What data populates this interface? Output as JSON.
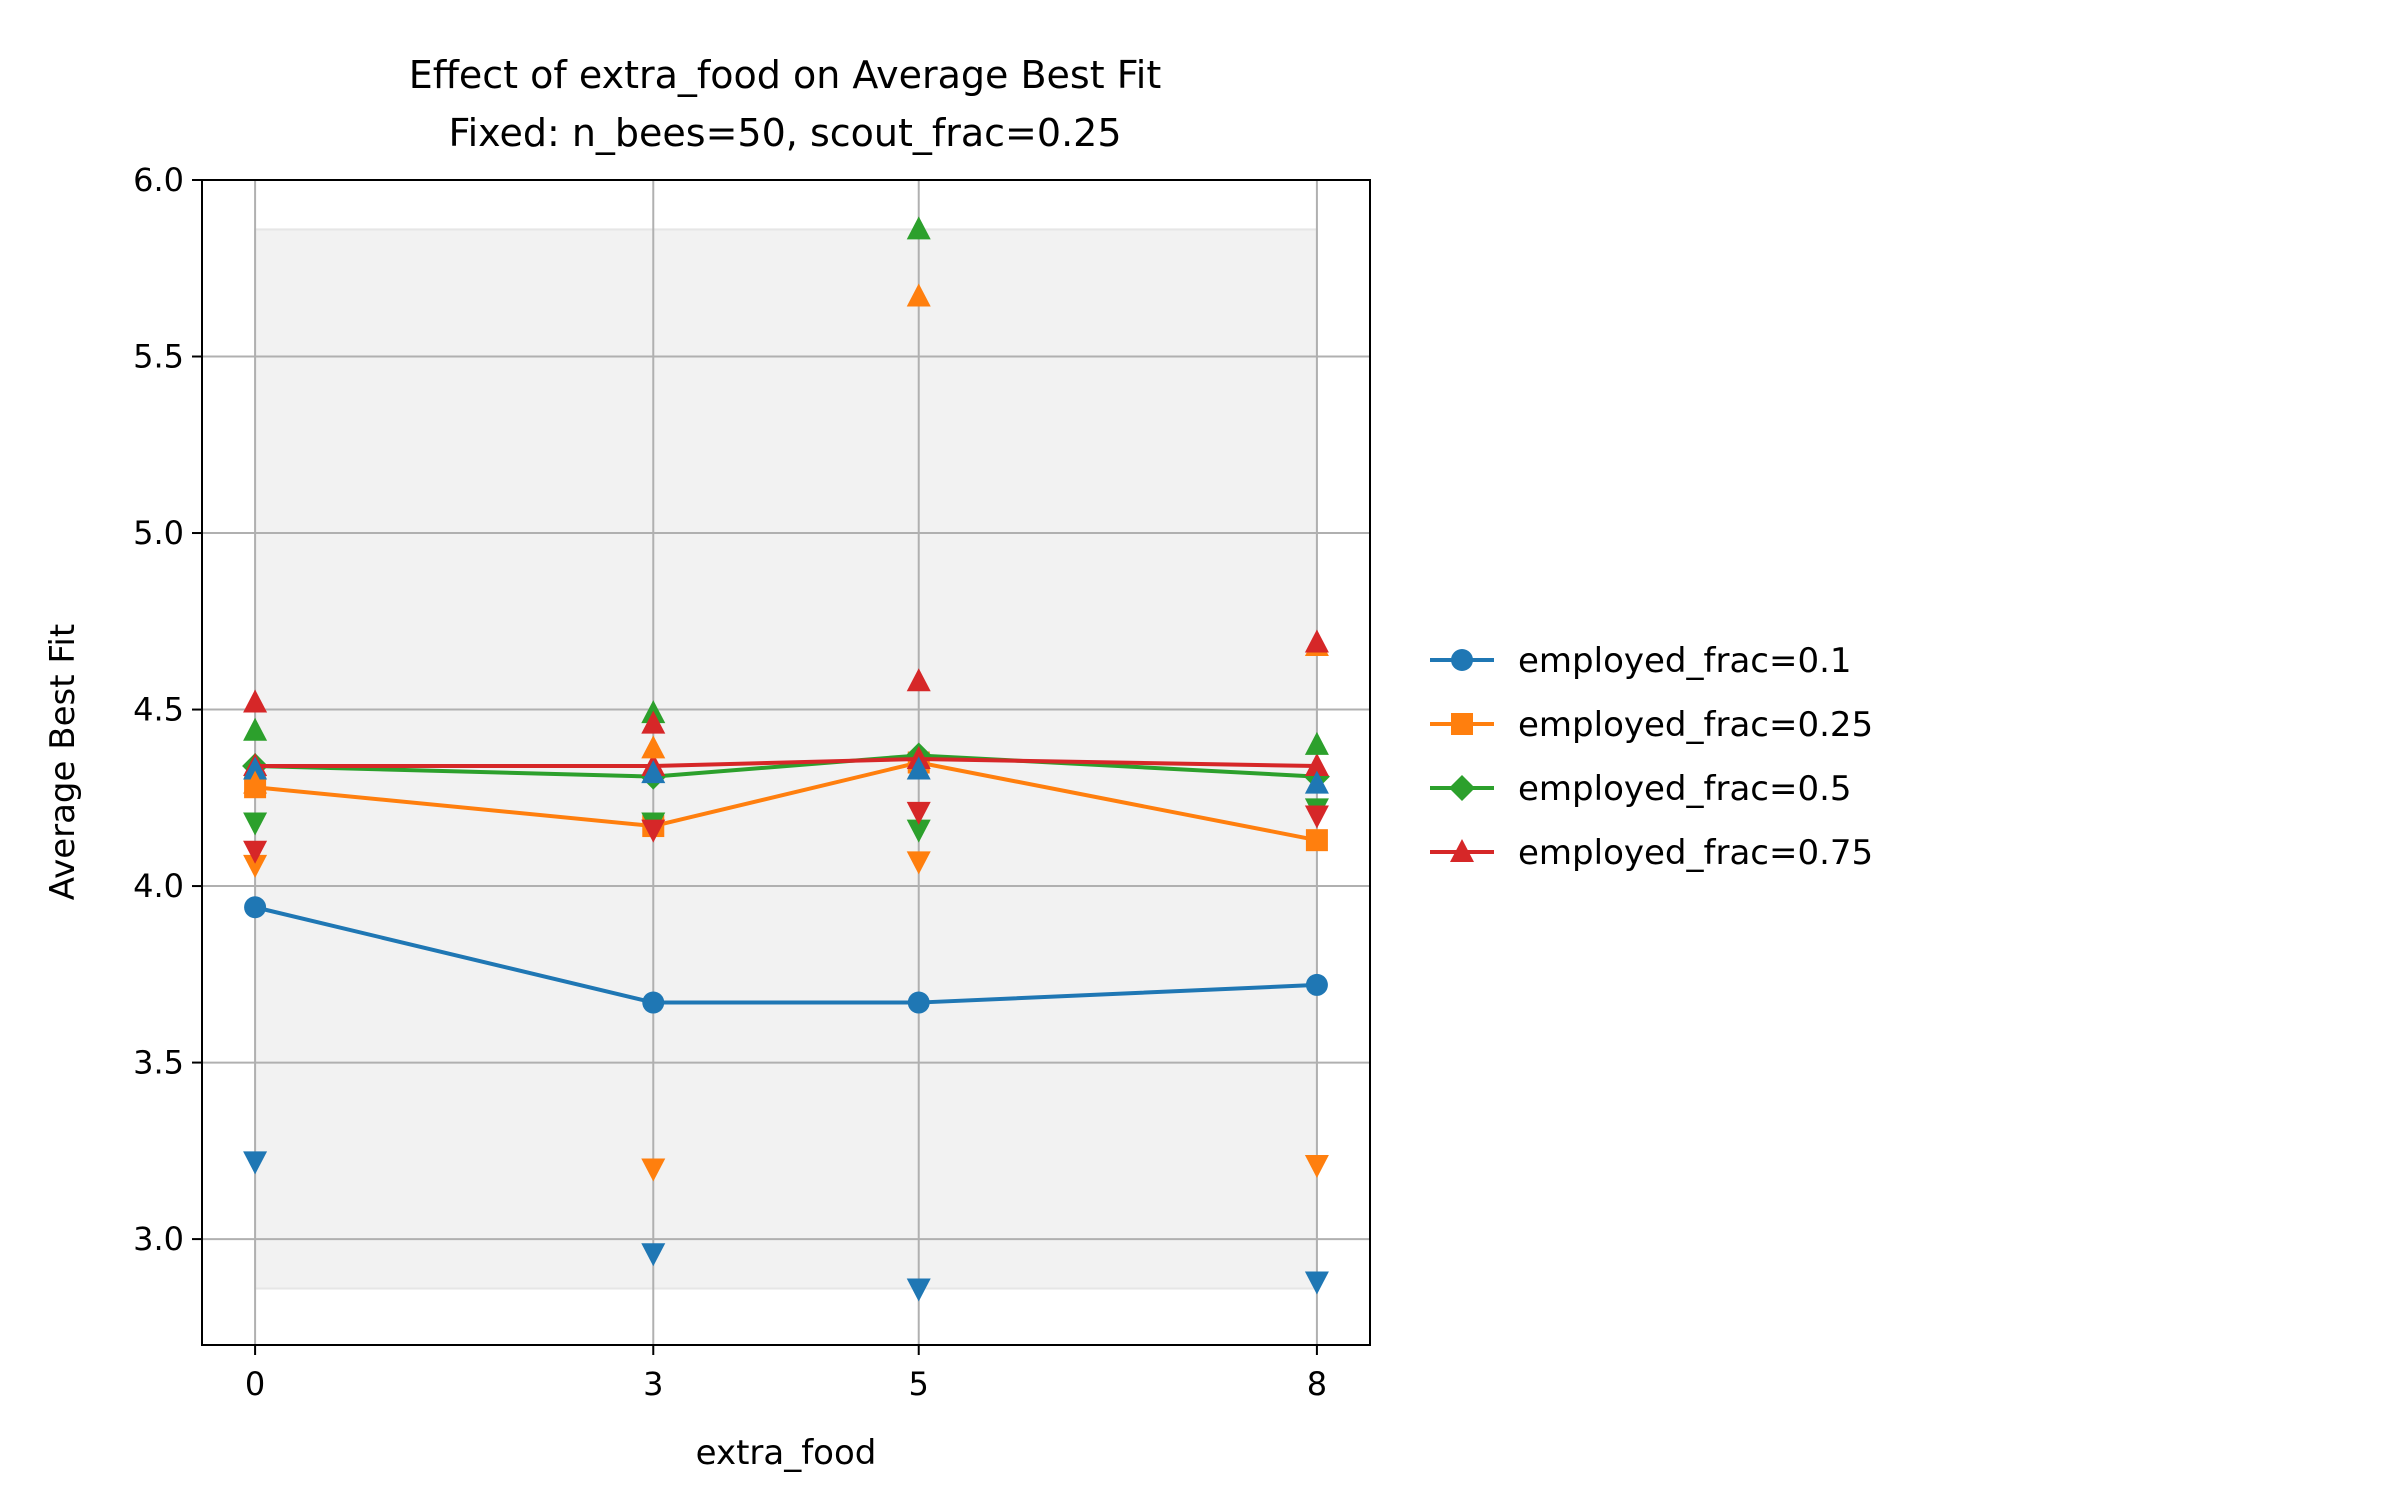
{
  "chart_data": {
    "type": "line",
    "title": "Effect of extra_food on Average Best Fit",
    "subtitle": "Fixed: n_bees=50, scout_frac=0.25",
    "xlabel": "extra_food",
    "ylabel": "Average Best Fit",
    "x": [
      0,
      3,
      5,
      8
    ],
    "x_ticks": [
      "0",
      "3",
      "5",
      "8"
    ],
    "y_ticks": [
      "3.0",
      "3.5",
      "4.0",
      "4.5",
      "5.0",
      "5.5",
      "6.0"
    ],
    "y_tick_values": [
      3.0,
      3.5,
      4.0,
      4.5,
      5.0,
      5.5,
      6.0
    ],
    "xlim": [
      -0.4,
      8.4
    ],
    "ylim": [
      2.7,
      6.0
    ],
    "grid": true,
    "legend_position": "right-outside",
    "band": {
      "low": 2.86,
      "high": 5.86
    },
    "series": [
      {
        "name": "employed_frac=0.1",
        "color": "#1f77b4",
        "marker": "circle",
        "values": [
          3.94,
          3.67,
          3.67,
          3.72
        ],
        "max": [
          4.33,
          4.32,
          4.33,
          4.29
        ],
        "min": [
          3.22,
          2.96,
          2.86,
          2.88
        ]
      },
      {
        "name": "employed_frac=0.25",
        "color": "#ff7f0e",
        "marker": "square",
        "values": [
          4.28,
          4.17,
          4.35,
          4.13
        ],
        "max": [
          4.29,
          4.39,
          5.67,
          4.68
        ],
        "min": [
          4.06,
          3.2,
          4.07,
          3.21
        ]
      },
      {
        "name": "employed_frac=0.5",
        "color": "#2ca02c",
        "marker": "diamond",
        "values": [
          4.34,
          4.31,
          4.37,
          4.31
        ],
        "max": [
          4.44,
          4.49,
          5.86,
          4.4
        ],
        "min": [
          4.18,
          4.18,
          4.16,
          4.22
        ]
      },
      {
        "name": "employed_frac=0.75",
        "color": "#d62728",
        "marker": "triangle",
        "values": [
          4.34,
          4.34,
          4.36,
          4.34
        ],
        "max": [
          4.52,
          4.46,
          4.58,
          4.69
        ],
        "min": [
          4.1,
          4.16,
          4.21,
          4.2
        ]
      }
    ]
  }
}
